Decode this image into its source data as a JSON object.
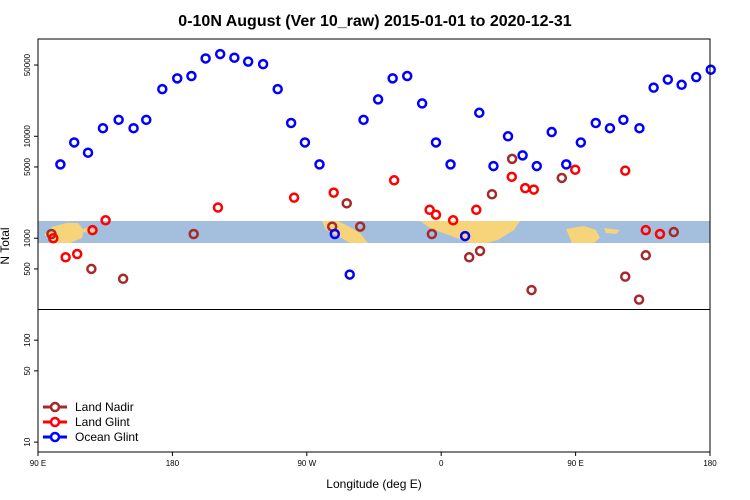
{
  "chart_data": {
    "type": "scatter",
    "title": "0-10N August (Ver 10_raw)   2015-01-01 to 2020-12-31",
    "xlabel": "Longitude (deg E)",
    "ylabel": "N Total",
    "xlim": [
      90,
      270
    ],
    "y_scale": "log",
    "ylim": [
      8,
      90000
    ],
    "x_ticks": [
      {
        "value": 90,
        "label": "90 E"
      },
      {
        "value": 126,
        "label": "180"
      },
      {
        "value": 162,
        "label": "90 W"
      },
      {
        "value": 198,
        "label": "0"
      },
      {
        "value": 234,
        "label": "90 E"
      },
      {
        "value": 270,
        "label": "180"
      }
    ],
    "y_ticks": [
      {
        "value": 10,
        "label": "10"
      },
      {
        "value": 50,
        "label": "50"
      },
      {
        "value": 100,
        "label": "100"
      },
      {
        "value": 500,
        "label": "500"
      },
      {
        "value": 1000,
        "label": "1000"
      },
      {
        "value": 5000,
        "label": "5000"
      },
      {
        "value": 10000,
        "label": "10000"
      },
      {
        "value": 50000,
        "label": "50000"
      }
    ],
    "reference_line_y": 200,
    "map_band_y": [
      800,
      1300
    ],
    "legend_position": "bottom-left",
    "series": [
      {
        "name": "Land Nadir",
        "color": "#a52a2a",
        "x": [
          93.6,
          104.3,
          112.8,
          131.7,
          168.8,
          172.7,
          176.3,
          195.5,
          205.5,
          208.4,
          211.6,
          217.0,
          222.2,
          230.3,
          247.3,
          251.0,
          252.8,
          260.3
        ],
        "y": [
          1100,
          500,
          400,
          1100,
          1300,
          2200,
          1300,
          1100,
          650,
          750,
          2700,
          6000,
          310,
          3900,
          420,
          250,
          680,
          1150
        ]
      },
      {
        "name": "Land Glint",
        "color": "#ff0000",
        "x": [
          94.1,
          97.4,
          100.5,
          104.6,
          108.1,
          138.2,
          158.6,
          169.2,
          185.4,
          194.9,
          196.6,
          201.2,
          207.4,
          216.9,
          220.5,
          222.8,
          233.9,
          247.3,
          252.8,
          256.6
        ],
        "y": [
          1000,
          650,
          700,
          1200,
          1500,
          2000,
          2500,
          2800,
          3700,
          1900,
          1700,
          1500,
          1900,
          4000,
          3100,
          3000,
          4700,
          4600,
          1200,
          1100
        ]
      },
      {
        "name": "Ocean Glint",
        "color": "#0000ff",
        "x": [
          96.0,
          99.7,
          103.4,
          107.4,
          111.6,
          115.6,
          119.0,
          123.3,
          127.3,
          131.1,
          134.9,
          138.8,
          142.6,
          146.3,
          150.3,
          154.2,
          157.8,
          161.5,
          165.4,
          169.5,
          173.5,
          177.2,
          181.1,
          185.0,
          188.9,
          192.9,
          196.6,
          200.5,
          204.4,
          208.2,
          212.0,
          215.9,
          219.8,
          223.6,
          227.6,
          231.5,
          235.4,
          239.4,
          243.2,
          246.8,
          251.1,
          254.9,
          258.7,
          262.4,
          266.3,
          270.2
        ],
        "y": [
          5300,
          8700,
          6900,
          12000,
          14500,
          12000,
          14500,
          29000,
          37000,
          39000,
          58000,
          64000,
          59000,
          54000,
          51000,
          29000,
          13500,
          8700,
          5300,
          1100,
          440,
          14500,
          23000,
          37000,
          39000,
          21000,
          8700,
          5300,
          1050,
          17000,
          5100,
          10000,
          6500,
          5100,
          11000,
          5300,
          8700,
          13500,
          12000,
          14500,
          12000,
          30000,
          36000,
          32000,
          38000,
          45000
        ]
      }
    ]
  }
}
